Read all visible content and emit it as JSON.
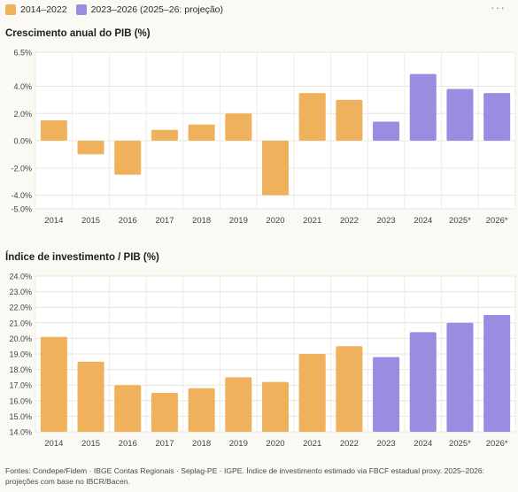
{
  "legend": [
    {
      "label": "2014–2022",
      "color": "#efb15b"
    },
    {
      "label": "2023–2026 (2025–26: projeção)",
      "color": "#9b8ce2"
    }
  ],
  "menu_icon": "more-horizontal-icon",
  "chart_data": [
    {
      "type": "bar",
      "title": "Crescimento anual do PIB (%)",
      "categories": [
        "2014",
        "2015",
        "2016",
        "2017",
        "2018",
        "2019",
        "2020",
        "2021",
        "2022",
        "2023",
        "2024",
        "2025*",
        "2026*"
      ],
      "values": [
        1.5,
        -1.0,
        -2.5,
        0.8,
        1.2,
        2.0,
        -4.0,
        3.5,
        3.0,
        1.4,
        4.9,
        3.8,
        3.5
      ],
      "series_group": [
        "a",
        "a",
        "a",
        "a",
        "a",
        "a",
        "a",
        "a",
        "a",
        "b",
        "b",
        "b",
        "b"
      ],
      "yticks": [
        6.5,
        4.0,
        2.0,
        0.0,
        -2.0,
        -4.0,
        -5.0
      ],
      "ytick_labels": [
        "6.5%",
        "4.0%",
        "2.0%",
        "0.0%",
        "-2.0%",
        "-4.0%",
        "-5.0%"
      ],
      "ylim": [
        -5.0,
        6.5
      ],
      "grid": true
    },
    {
      "type": "bar",
      "title": "Índice de investimento / PIB (%)",
      "categories": [
        "2014",
        "2015",
        "2016",
        "2017",
        "2018",
        "2019",
        "2020",
        "2021",
        "2022",
        "2023",
        "2024",
        "2025*",
        "2026*"
      ],
      "values": [
        20.1,
        18.5,
        17.0,
        16.5,
        16.8,
        17.5,
        17.2,
        19.0,
        19.5,
        18.8,
        20.4,
        21.0,
        21.5
      ],
      "series_group": [
        "a",
        "a",
        "a",
        "a",
        "a",
        "a",
        "a",
        "a",
        "a",
        "b",
        "b",
        "b",
        "b"
      ],
      "yticks": [
        24.0,
        23.0,
        22.0,
        21.0,
        20.0,
        19.0,
        18.0,
        17.0,
        16.0,
        15.0,
        14.0
      ],
      "ytick_labels": [
        "24.0%",
        "23.0%",
        "22.0%",
        "21.0%",
        "20.0%",
        "19.0%",
        "18.0%",
        "17.0%",
        "16.0%",
        "15.0%",
        "14.0%"
      ],
      "ylim": [
        14.0,
        24.0
      ],
      "grid": true
    }
  ],
  "footnote": "Fontes: Condepe/Fidem · IBGE Contas Regionais · Seplag-PE · IGPE. Índice de investimento estimado via FBCF estadual proxy. 2025–2026: projeções com base no IBCR/Bacen."
}
